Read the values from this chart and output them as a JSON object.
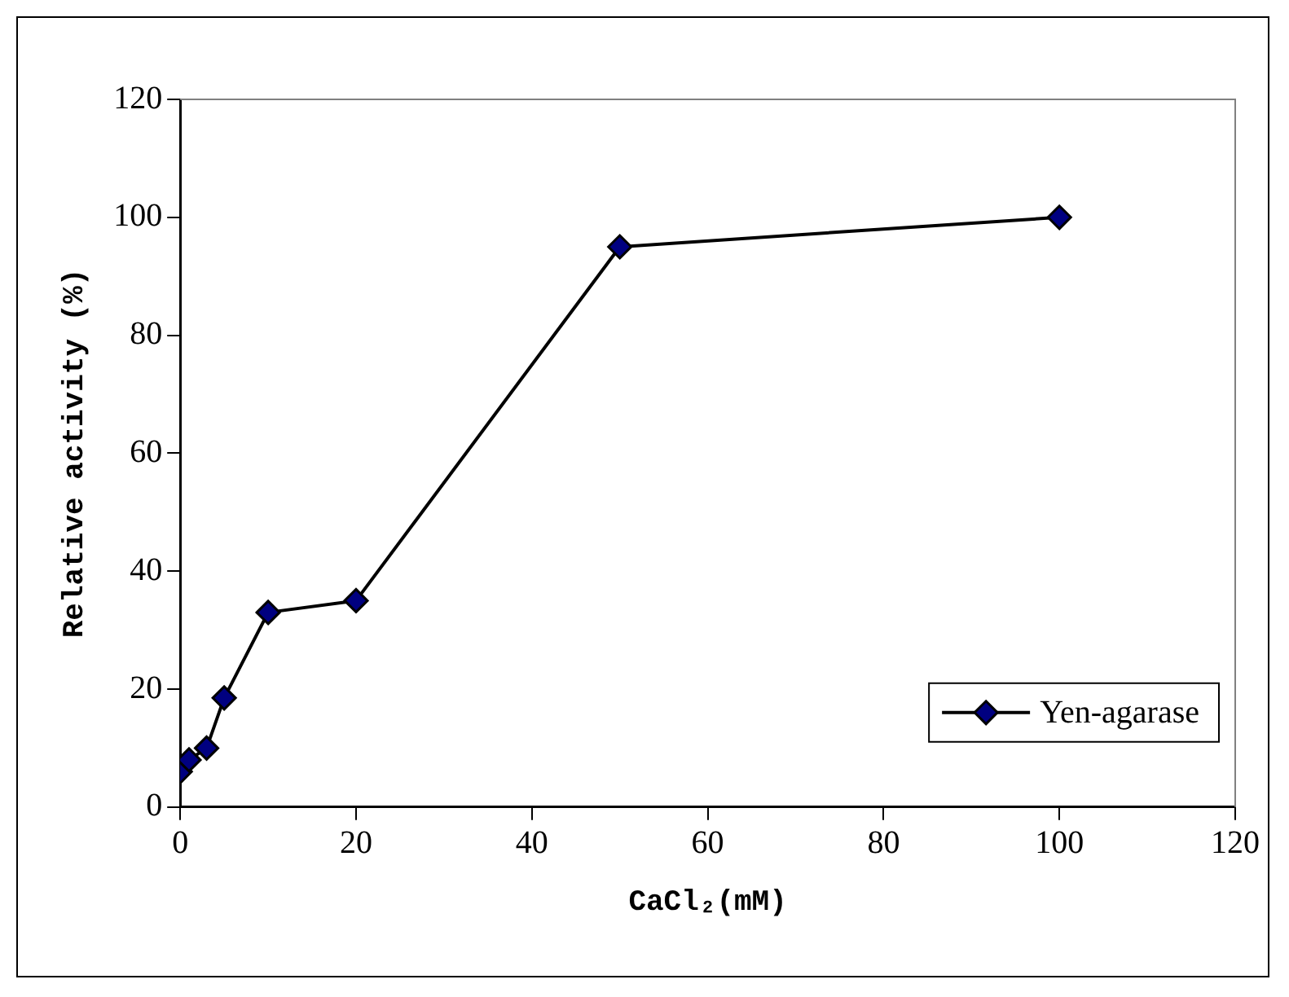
{
  "chart_data": {
    "type": "line",
    "xlabel": "CaCl₂(mM)",
    "ylabel": "Relative activity (%)",
    "x": [
      0,
      1,
      3,
      5,
      10,
      20,
      50,
      100
    ],
    "series": [
      {
        "name": "Yen-agarase",
        "color": "#000080",
        "values": [
          6,
          8,
          10,
          18.5,
          33,
          35,
          95,
          100
        ]
      }
    ],
    "xlim": [
      0,
      120
    ],
    "xticks": [
      0,
      20,
      40,
      60,
      80,
      100,
      120
    ],
    "ylim": [
      0,
      120
    ],
    "yticks": [
      0,
      20,
      40,
      60,
      80,
      100,
      120
    ],
    "grid": false,
    "legend": "bottom right",
    "marker": "diamond",
    "line_style": "solid"
  }
}
